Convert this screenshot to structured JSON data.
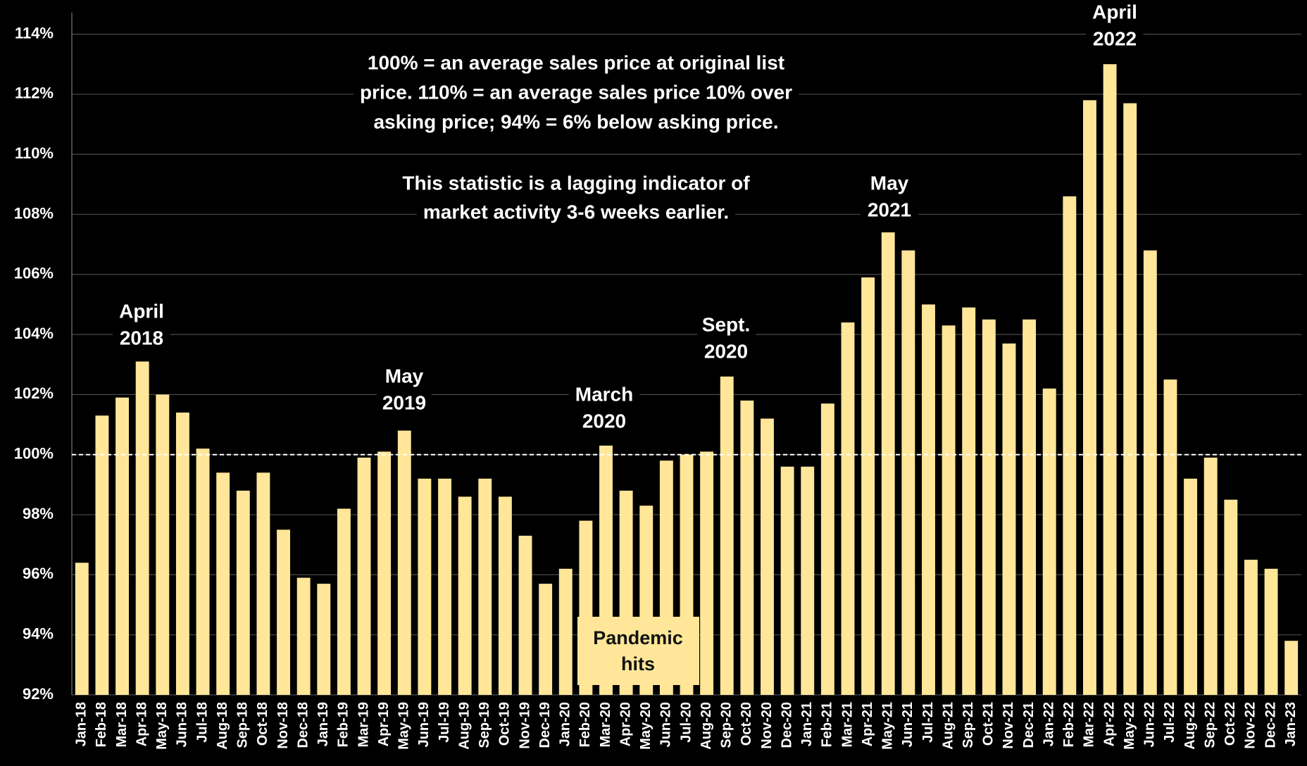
{
  "chart_data": {
    "type": "bar",
    "categories": [
      "Jan-18",
      "Feb-18",
      "Mar-18",
      "Apr-18",
      "May-18",
      "Jun-18",
      "Jul-18",
      "Aug-18",
      "Sep-18",
      "Oct-18",
      "Nov-18",
      "Dec-18",
      "Jan-19",
      "Feb-19",
      "Mar-19",
      "Apr-19",
      "May-19",
      "Jun-19",
      "Jul-19",
      "Aug-19",
      "Sep-19",
      "Oct-19",
      "Nov-19",
      "Dec-19",
      "Jan-20",
      "Feb-20",
      "Mar-20",
      "Apr-20",
      "May-20",
      "Jun-20",
      "Jul-20",
      "Aug-20",
      "Sep-20",
      "Oct-20",
      "Nov-20",
      "Dec-20",
      "Jan-21",
      "Feb-21",
      "Mar-21",
      "Apr-21",
      "May-21",
      "Jun-21",
      "Jul-21",
      "Aug-21",
      "Sep-21",
      "Oct-21",
      "Nov-21",
      "Dec-21",
      "Jan-22",
      "Feb-22",
      "Mar-22",
      "Apr-22",
      "May-22",
      "Jun-22",
      "Jul-22",
      "Aug-22",
      "Sep-22",
      "Oct-22",
      "Nov-22",
      "Dec-22",
      "Jan-23"
    ],
    "values": [
      96.4,
      101.3,
      101.9,
      103.1,
      102.0,
      101.4,
      100.2,
      99.4,
      98.8,
      99.4,
      97.5,
      95.9,
      95.7,
      98.2,
      99.9,
      100.1,
      100.8,
      99.2,
      99.2,
      98.6,
      99.2,
      98.6,
      97.3,
      95.7,
      96.2,
      97.8,
      100.3,
      98.8,
      98.3,
      99.8,
      100.0,
      100.1,
      102.6,
      101.8,
      101.2,
      99.6,
      99.6,
      101.7,
      104.4,
      105.9,
      107.4,
      106.8,
      105.0,
      104.3,
      104.9,
      104.5,
      103.7,
      104.5,
      102.2,
      108.6,
      111.8,
      113.0,
      111.7,
      106.8,
      102.5,
      99.2,
      99.9,
      98.5,
      96.5,
      96.2,
      93.8
    ],
    "color": "#ffe699",
    "ylim": [
      92,
      114
    ],
    "yticks": [
      {
        "value": 92,
        "label": "92%"
      },
      {
        "value": 94,
        "label": "94%"
      },
      {
        "value": 96,
        "label": "96%"
      },
      {
        "value": 98,
        "label": "98%"
      },
      {
        "value": 100,
        "label": "100%"
      },
      {
        "value": 102,
        "label": "102%"
      },
      {
        "value": 104,
        "label": "104%"
      },
      {
        "value": 106,
        "label": "106%"
      },
      {
        "value": 108,
        "label": "108%"
      },
      {
        "value": 110,
        "label": "110%"
      },
      {
        "value": 112,
        "label": "112%"
      },
      {
        "value": 114,
        "label": "114%"
      }
    ],
    "grid": true,
    "reference_line": 100,
    "annotations": [
      [
        "April",
        "2018"
      ],
      [
        "May",
        "2019"
      ],
      [
        "March",
        "2020"
      ],
      [
        "Sept.",
        "2020"
      ],
      [
        "May",
        "2021"
      ],
      [
        "April",
        "2022"
      ]
    ],
    "note": [
      "100% = an average sales price at original list",
      "price. 110% = an average sales price 10% over",
      "asking price; 94% = 6% below asking price.",
      "This statistic is a lagging indicator of",
      "market activity 3-6 weeks earlier."
    ],
    "callout": [
      "Pandemic",
      "hits"
    ]
  }
}
